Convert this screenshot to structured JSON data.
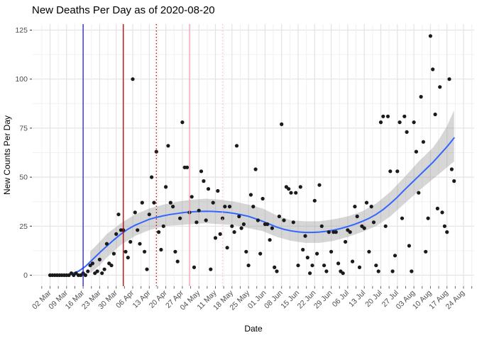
{
  "chart_data": {
    "type": "scatter",
    "title": "New Deaths Per Day as of 2020-08-20",
    "xlabel": "Date",
    "ylabel": "New Counts Per Day",
    "ylim": [
      0,
      125
    ],
    "y_ticks": [
      0,
      25,
      50,
      75,
      100,
      125
    ],
    "x_ticks": [
      {
        "date": "2020-03-02",
        "label": "02 Mar"
      },
      {
        "date": "2020-03-09",
        "label": "09 Mar"
      },
      {
        "date": "2020-03-16",
        "label": "16 Mar"
      },
      {
        "date": "2020-03-23",
        "label": "23 Mar"
      },
      {
        "date": "2020-03-30",
        "label": "30 Mar"
      },
      {
        "date": "2020-04-06",
        "label": "06 Apr"
      },
      {
        "date": "2020-04-13",
        "label": "13 Apr"
      },
      {
        "date": "2020-04-20",
        "label": "20 Apr"
      },
      {
        "date": "2020-04-27",
        "label": "27 Apr"
      },
      {
        "date": "2020-05-04",
        "label": "04 May"
      },
      {
        "date": "2020-05-11",
        "label": "11 May"
      },
      {
        "date": "2020-05-18",
        "label": "18 May"
      },
      {
        "date": "2020-05-25",
        "label": "25 May"
      },
      {
        "date": "2020-06-01",
        "label": "01 Jun"
      },
      {
        "date": "2020-06-08",
        "label": "08 Jun"
      },
      {
        "date": "2020-06-15",
        "label": "15 Jun"
      },
      {
        "date": "2020-06-22",
        "label": "22 Jun"
      },
      {
        "date": "2020-06-29",
        "label": "29 Jun"
      },
      {
        "date": "2020-07-06",
        "label": "06 Jul"
      },
      {
        "date": "2020-07-13",
        "label": "13 Jul"
      },
      {
        "date": "2020-07-20",
        "label": "20 Jul"
      },
      {
        "date": "2020-07-27",
        "label": "27 Jul"
      },
      {
        "date": "2020-08-03",
        "label": "03 Aug"
      },
      {
        "date": "2020-08-10",
        "label": "10 Aug"
      },
      {
        "date": "2020-08-17",
        "label": "17 Aug"
      },
      {
        "date": "2020-08-24",
        "label": "24 Aug"
      }
    ],
    "grid": true,
    "legend": "none",
    "colors": {
      "point": "#1a1a1a",
      "smooth_line": "#3366ff",
      "ribbon": "#999999",
      "vline_blue": "#2121b8",
      "vline_red": "#c00000",
      "vline_pink": "#f2a0ae",
      "vline_pink_light": "#f7c2cc",
      "grid_major": "#e3e3e3",
      "grid_minor": "#f0f0f0",
      "tick_text": "#4d4d4d"
    },
    "scatter": {
      "x_start": "2020-03-02",
      "x_step_days": 1,
      "values": [
        0,
        0,
        0,
        0,
        0,
        0,
        0,
        0,
        0,
        1,
        0,
        1,
        0,
        0,
        1,
        0,
        2,
        5,
        6,
        1,
        2,
        8,
        1,
        3,
        16,
        6,
        5,
        11,
        21,
        31,
        23,
        23,
        12,
        9,
        17,
        100,
        32,
        23,
        16,
        37,
        12,
        3,
        31,
        50,
        37,
        63,
        22,
        13,
        25,
        45,
        66,
        37,
        35,
        12,
        7,
        29,
        78,
        55,
        55,
        32,
        40,
        4,
        27,
        33,
        53,
        48,
        28,
        44,
        3,
        37,
        19,
        43,
        21,
        29,
        35,
        14,
        35,
        25,
        22,
        66,
        30,
        24,
        26,
        12,
        5,
        41,
        35,
        54,
        28,
        11,
        39,
        26,
        26,
        18,
        24,
        4,
        2,
        30,
        77,
        28,
        45,
        44,
        42,
        27,
        42,
        5,
        45,
        13,
        20,
        9,
        1,
        5,
        38,
        11,
        46,
        25,
        5,
        2,
        22,
        12,
        22,
        22,
        6,
        2,
        1,
        17,
        23,
        22,
        7,
        35,
        30,
        4,
        25,
        24,
        37,
        12,
        35,
        27,
        5,
        2,
        78,
        81,
        25,
        81,
        53,
        2,
        10,
        53,
        78,
        29,
        81,
        73,
        15,
        2,
        78,
        63,
        42,
        91,
        68,
        12,
        29,
        122,
        105,
        82,
        34,
        96,
        32,
        25,
        22,
        100,
        54,
        48
      ]
    },
    "smooth_line": [
      [
        "2020-03-10",
        0.3
      ],
      [
        "2020-03-14",
        2
      ],
      [
        "2020-03-17",
        4.5
      ],
      [
        "2020-03-20",
        8
      ],
      [
        "2020-03-23",
        11.5
      ],
      [
        "2020-03-26",
        14.8
      ],
      [
        "2020-03-29",
        18
      ],
      [
        "2020-04-01",
        21
      ],
      [
        "2020-04-04",
        23.5
      ],
      [
        "2020-04-07",
        25.5
      ],
      [
        "2020-04-10",
        27
      ],
      [
        "2020-04-13",
        28.5
      ],
      [
        "2020-04-16",
        29.5
      ],
      [
        "2020-04-19",
        30.3
      ],
      [
        "2020-04-22",
        31
      ],
      [
        "2020-04-25",
        31.5
      ],
      [
        "2020-04-28",
        32
      ],
      [
        "2020-05-01",
        32.3
      ],
      [
        "2020-05-04",
        32.5
      ],
      [
        "2020-05-07",
        32.6
      ],
      [
        "2020-05-10",
        32.5
      ],
      [
        "2020-05-13",
        32.3
      ],
      [
        "2020-05-16",
        32
      ],
      [
        "2020-05-19",
        31.5
      ],
      [
        "2020-05-22",
        30.8
      ],
      [
        "2020-05-25",
        30
      ],
      [
        "2020-05-28",
        28.8
      ],
      [
        "2020-05-31",
        27.5
      ],
      [
        "2020-06-03",
        26
      ],
      [
        "2020-06-06",
        24.5
      ],
      [
        "2020-06-09",
        23.4
      ],
      [
        "2020-06-12",
        22.6
      ],
      [
        "2020-06-15",
        22.1
      ],
      [
        "2020-06-18",
        21.8
      ],
      [
        "2020-06-21",
        21.8
      ],
      [
        "2020-06-24",
        22
      ],
      [
        "2020-06-27",
        22.4
      ],
      [
        "2020-06-30",
        23
      ],
      [
        "2020-07-03",
        23.8
      ],
      [
        "2020-07-06",
        24.8
      ],
      [
        "2020-07-09",
        26
      ],
      [
        "2020-07-12",
        27.4
      ],
      [
        "2020-07-15",
        29
      ],
      [
        "2020-07-18",
        31
      ],
      [
        "2020-07-21",
        33.5
      ],
      [
        "2020-07-24",
        36.5
      ],
      [
        "2020-07-27",
        39.8
      ],
      [
        "2020-07-30",
        43.5
      ],
      [
        "2020-08-02",
        47
      ],
      [
        "2020-08-05",
        50.5
      ],
      [
        "2020-08-08",
        54
      ],
      [
        "2020-08-11",
        57.5
      ],
      [
        "2020-08-14",
        61.5
      ],
      [
        "2020-08-17",
        65.5
      ],
      [
        "2020-08-20",
        70
      ]
    ],
    "ribbon": [
      [
        "2020-03-19",
        1,
        12
      ],
      [
        "2020-03-23",
        5,
        17
      ],
      [
        "2020-03-26",
        9,
        21
      ],
      [
        "2020-04-01",
        15.5,
        26.5
      ],
      [
        "2020-04-07",
        20,
        31
      ],
      [
        "2020-04-13",
        23,
        34
      ],
      [
        "2020-04-19",
        25,
        36
      ],
      [
        "2020-04-25",
        25.5,
        37.5
      ],
      [
        "2020-05-01",
        26,
        38.5
      ],
      [
        "2020-05-07",
        26.5,
        39
      ],
      [
        "2020-05-13",
        26,
        38.5
      ],
      [
        "2020-05-19",
        25.5,
        37.5
      ],
      [
        "2020-05-25",
        24,
        36
      ],
      [
        "2020-05-31",
        22.5,
        34
      ],
      [
        "2020-06-06",
        19.5,
        30.5
      ],
      [
        "2020-06-12",
        17.5,
        28
      ],
      [
        "2020-06-18",
        16.5,
        27.5
      ],
      [
        "2020-06-24",
        16.5,
        27.5
      ],
      [
        "2020-06-30",
        17.5,
        28.5
      ],
      [
        "2020-07-06",
        19.5,
        30
      ],
      [
        "2020-07-12",
        22,
        32.5
      ],
      [
        "2020-07-18",
        25,
        36.5
      ],
      [
        "2020-07-24",
        30,
        42.5
      ],
      [
        "2020-07-30",
        36.5,
        50
      ],
      [
        "2020-08-05",
        43,
        58
      ],
      [
        "2020-08-11",
        49,
        65
      ],
      [
        "2020-08-14",
        52,
        70
      ],
      [
        "2020-08-17",
        55,
        76
      ],
      [
        "2020-08-20",
        58,
        84
      ]
    ],
    "vlines": [
      {
        "date": "2020-03-16",
        "color": "#2121b8",
        "style": "solid",
        "name": "vline-blue-solid"
      },
      {
        "date": "2020-04-02",
        "color": "#c00000",
        "style": "solid",
        "name": "vline-red-solid"
      },
      {
        "date": "2020-04-16",
        "color": "#c00000",
        "style": "dotted",
        "name": "vline-red-dotted"
      },
      {
        "date": "2020-04-30",
        "color": "#f2a0ae",
        "style": "solid",
        "name": "vline-pink-solid"
      },
      {
        "date": "2020-05-14",
        "color": "#f7c2cc",
        "style": "dotted",
        "name": "vline-pink-dotted"
      }
    ]
  }
}
